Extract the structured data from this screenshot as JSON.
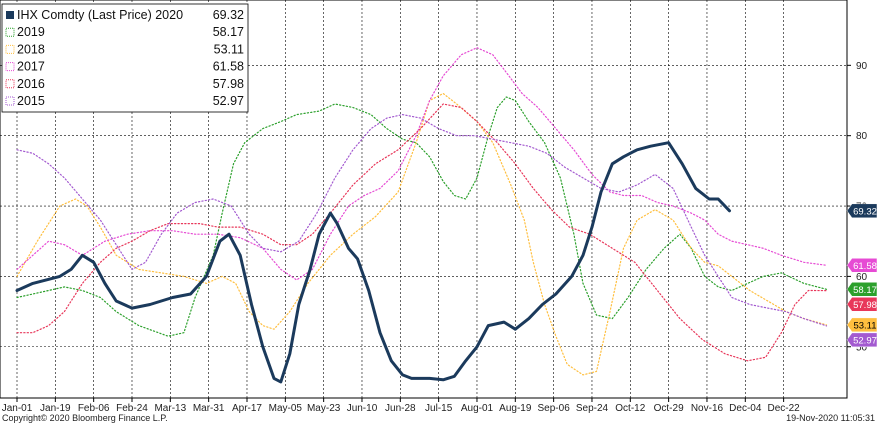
{
  "chart_data": {
    "type": "line",
    "x_ticks": [
      "Jan-01",
      "Jan-19",
      "Feb-06",
      "Feb-24",
      "Mar-13",
      "Mar-31",
      "Apr-17",
      "May-05",
      "May-23",
      "Jun-10",
      "Jun-28",
      "Jul-15",
      "Aug-01",
      "Aug-19",
      "Sep-06",
      "Sep-24",
      "Oct-12",
      "Oct-29",
      "Nov-16",
      "Dec-04",
      "Dec-22"
    ],
    "y_ticks": [
      50,
      60,
      70,
      80,
      90
    ],
    "ylim": [
      43,
      99
    ],
    "xlim": [
      1,
      366
    ],
    "grid": true,
    "legend_position": "top-left",
    "series": [
      {
        "name": "IHX Comdty (Last Price) 2020",
        "last": "69.32",
        "color": "#1b3a5c",
        "style": "solid",
        "points": [
          [
            1,
            58
          ],
          [
            8,
            59
          ],
          [
            14,
            59.5
          ],
          [
            20,
            60
          ],
          [
            25,
            61
          ],
          [
            30,
            63
          ],
          [
            35,
            62
          ],
          [
            40,
            59
          ],
          [
            45,
            56.5
          ],
          [
            52,
            55.5
          ],
          [
            60,
            56
          ],
          [
            70,
            57
          ],
          [
            78,
            57.5
          ],
          [
            85,
            60
          ],
          [
            91,
            65
          ],
          [
            95,
            66
          ],
          [
            100,
            63
          ],
          [
            105,
            56
          ],
          [
            110,
            50
          ],
          [
            115,
            45.5
          ],
          [
            118,
            45
          ],
          [
            122,
            49
          ],
          [
            126,
            56
          ],
          [
            131,
            61
          ],
          [
            135,
            66
          ],
          [
            140,
            69
          ],
          [
            143,
            67.5
          ],
          [
            148,
            64
          ],
          [
            152,
            62.5
          ],
          [
            157,
            58
          ],
          [
            162,
            52
          ],
          [
            167,
            48
          ],
          [
            172,
            46
          ],
          [
            176,
            45.5
          ],
          [
            184,
            45.5
          ],
          [
            190,
            45.3
          ],
          [
            195,
            45.8
          ],
          [
            200,
            48
          ],
          [
            205,
            50
          ],
          [
            210,
            53
          ],
          [
            217,
            53.5
          ],
          [
            222,
            52.5
          ],
          [
            228,
            54
          ],
          [
            234,
            56
          ],
          [
            240,
            57.5
          ],
          [
            247,
            60
          ],
          [
            252,
            63
          ],
          [
            256,
            67
          ],
          [
            260,
            72
          ],
          [
            265,
            76
          ],
          [
            270,
            77
          ],
          [
            276,
            78
          ],
          [
            282,
            78.5
          ],
          [
            290,
            79
          ],
          [
            296,
            76
          ],
          [
            302,
            72.5
          ],
          [
            308,
            71
          ],
          [
            312,
            71
          ],
          [
            317,
            69.32
          ]
        ]
      },
      {
        "name": "2019",
        "last": "58.17",
        "color": "#2ca02c",
        "style": "dotted",
        "points": [
          [
            1,
            57
          ],
          [
            8,
            57.5
          ],
          [
            15,
            58
          ],
          [
            22,
            58.5
          ],
          [
            30,
            58
          ],
          [
            38,
            57
          ],
          [
            45,
            55
          ],
          [
            55,
            53
          ],
          [
            68,
            51.5
          ],
          [
            75,
            52
          ],
          [
            80,
            57
          ],
          [
            88,
            63
          ],
          [
            92,
            69
          ],
          [
            97,
            76
          ],
          [
            102,
            79
          ],
          [
            110,
            81
          ],
          [
            118,
            82
          ],
          [
            125,
            83
          ],
          [
            135,
            83.5
          ],
          [
            142,
            84.5
          ],
          [
            150,
            84
          ],
          [
            158,
            83
          ],
          [
            165,
            81
          ],
          [
            172,
            79.5
          ],
          [
            178,
            79
          ],
          [
            184,
            77
          ],
          [
            190,
            73.5
          ],
          [
            195,
            71.5
          ],
          [
            200,
            71
          ],
          [
            205,
            74
          ],
          [
            210,
            80
          ],
          [
            214,
            84
          ],
          [
            218,
            85.5
          ],
          [
            222,
            85
          ],
          [
            228,
            82
          ],
          [
            235,
            79
          ],
          [
            242,
            74
          ],
          [
            248,
            66
          ],
          [
            252,
            59
          ],
          [
            258,
            54.5
          ],
          [
            265,
            54
          ],
          [
            272,
            57
          ],
          [
            280,
            61
          ],
          [
            288,
            64
          ],
          [
            295,
            66
          ],
          [
            300,
            64
          ],
          [
            306,
            60
          ],
          [
            312,
            58.5
          ],
          [
            318,
            58
          ],
          [
            325,
            59
          ],
          [
            332,
            60
          ],
          [
            340,
            60.5
          ],
          [
            350,
            59
          ],
          [
            360,
            58.17
          ]
        ]
      },
      {
        "name": "2018",
        "last": "53.11",
        "color": "#ffbf3f",
        "style": "dotted",
        "points": [
          [
            1,
            60
          ],
          [
            10,
            65
          ],
          [
            20,
            70
          ],
          [
            27,
            71
          ],
          [
            32,
            70
          ],
          [
            38,
            67
          ],
          [
            45,
            63
          ],
          [
            55,
            61
          ],
          [
            65,
            60.5
          ],
          [
            75,
            60
          ],
          [
            85,
            59
          ],
          [
            92,
            60
          ],
          [
            98,
            59
          ],
          [
            104,
            55
          ],
          [
            110,
            53
          ],
          [
            115,
            52.5
          ],
          [
            122,
            55
          ],
          [
            130,
            59
          ],
          [
            140,
            63
          ],
          [
            150,
            66
          ],
          [
            160,
            68.5
          ],
          [
            170,
            72
          ],
          [
            178,
            79
          ],
          [
            184,
            85
          ],
          [
            190,
            86
          ],
          [
            196,
            84.5
          ],
          [
            205,
            82
          ],
          [
            212,
            79
          ],
          [
            220,
            73
          ],
          [
            226,
            68
          ],
          [
            230,
            62
          ],
          [
            235,
            56
          ],
          [
            240,
            51.5
          ],
          [
            245,
            47.5
          ],
          [
            252,
            46
          ],
          [
            258,
            46.5
          ],
          [
            264,
            55
          ],
          [
            270,
            64
          ],
          [
            276,
            68
          ],
          [
            284,
            69.5
          ],
          [
            292,
            68
          ],
          [
            300,
            64
          ],
          [
            306,
            62
          ],
          [
            312,
            61.5
          ],
          [
            318,
            60
          ],
          [
            326,
            58
          ],
          [
            334,
            56.5
          ],
          [
            342,
            55
          ],
          [
            350,
            54
          ],
          [
            360,
            53.11
          ]
        ]
      },
      {
        "name": "2017",
        "last": "61.58",
        "color": "#e64bd4",
        "style": "dotted",
        "points": [
          [
            1,
            61
          ],
          [
            8,
            63
          ],
          [
            15,
            65
          ],
          [
            22,
            64.5
          ],
          [
            30,
            63
          ],
          [
            40,
            65
          ],
          [
            50,
            66
          ],
          [
            60,
            66.5
          ],
          [
            70,
            66.5
          ],
          [
            80,
            66
          ],
          [
            90,
            66
          ],
          [
            100,
            65.5
          ],
          [
            110,
            64
          ],
          [
            118,
            61
          ],
          [
            125,
            59.5
          ],
          [
            132,
            61
          ],
          [
            140,
            66
          ],
          [
            148,
            70
          ],
          [
            155,
            71.5
          ],
          [
            162,
            72.5
          ],
          [
            170,
            75
          ],
          [
            178,
            80
          ],
          [
            184,
            85
          ],
          [
            190,
            88.5
          ],
          [
            198,
            91.5
          ],
          [
            205,
            92.5
          ],
          [
            212,
            91.5
          ],
          [
            218,
            89
          ],
          [
            225,
            86
          ],
          [
            232,
            84
          ],
          [
            240,
            81
          ],
          [
            248,
            78
          ],
          [
            256,
            74.5
          ],
          [
            264,
            72
          ],
          [
            270,
            71.5
          ],
          [
            278,
            71.5
          ],
          [
            285,
            70.5
          ],
          [
            292,
            70
          ],
          [
            300,
            69
          ],
          [
            306,
            68
          ],
          [
            312,
            66
          ],
          [
            318,
            65
          ],
          [
            325,
            64.5
          ],
          [
            332,
            64
          ],
          [
            340,
            63
          ],
          [
            350,
            62
          ],
          [
            360,
            61.58
          ]
        ]
      },
      {
        "name": "2016",
        "last": "57.98",
        "color": "#e8375a",
        "style": "dotted",
        "points": [
          [
            1,
            52
          ],
          [
            8,
            52
          ],
          [
            15,
            53
          ],
          [
            22,
            55
          ],
          [
            30,
            59
          ],
          [
            38,
            62
          ],
          [
            45,
            64
          ],
          [
            52,
            65
          ],
          [
            60,
            66.5
          ],
          [
            68,
            67.5
          ],
          [
            75,
            67.5
          ],
          [
            82,
            67.5
          ],
          [
            90,
            67
          ],
          [
            100,
            67
          ],
          [
            110,
            66
          ],
          [
            118,
            64.5
          ],
          [
            125,
            64.5
          ],
          [
            132,
            66
          ],
          [
            140,
            69
          ],
          [
            150,
            73
          ],
          [
            160,
            76
          ],
          [
            170,
            78
          ],
          [
            180,
            81
          ],
          [
            190,
            84.5
          ],
          [
            198,
            84
          ],
          [
            205,
            82
          ],
          [
            214,
            79
          ],
          [
            222,
            76
          ],
          [
            230,
            72.5
          ],
          [
            238,
            69.5
          ],
          [
            246,
            67
          ],
          [
            255,
            66
          ],
          [
            265,
            64
          ],
          [
            275,
            62
          ],
          [
            285,
            58
          ],
          [
            295,
            54
          ],
          [
            305,
            51
          ],
          [
            315,
            49
          ],
          [
            325,
            48
          ],
          [
            333,
            48.5
          ],
          [
            340,
            52
          ],
          [
            346,
            56
          ],
          [
            352,
            58
          ],
          [
            360,
            57.98
          ]
        ]
      },
      {
        "name": "2015",
        "last": "52.97",
        "color": "#a35ad0",
        "style": "dotted",
        "points": [
          [
            1,
            78
          ],
          [
            8,
            77.5
          ],
          [
            15,
            76
          ],
          [
            22,
            74
          ],
          [
            30,
            71
          ],
          [
            38,
            68
          ],
          [
            45,
            64.5
          ],
          [
            52,
            61
          ],
          [
            58,
            62
          ],
          [
            65,
            66
          ],
          [
            72,
            69
          ],
          [
            80,
            70.5
          ],
          [
            88,
            71
          ],
          [
            96,
            70
          ],
          [
            104,
            66
          ],
          [
            110,
            64
          ],
          [
            118,
            63.5
          ],
          [
            126,
            65
          ],
          [
            134,
            69
          ],
          [
            142,
            74
          ],
          [
            150,
            78
          ],
          [
            158,
            81
          ],
          [
            165,
            82.5
          ],
          [
            172,
            83
          ],
          [
            180,
            82.5
          ],
          [
            188,
            81
          ],
          [
            196,
            80
          ],
          [
            204,
            80
          ],
          [
            212,
            79.5
          ],
          [
            220,
            79
          ],
          [
            228,
            78.5
          ],
          [
            236,
            77.5
          ],
          [
            244,
            75.5
          ],
          [
            252,
            74
          ],
          [
            260,
            72.5
          ],
          [
            268,
            72
          ],
          [
            276,
            73
          ],
          [
            284,
            74.5
          ],
          [
            292,
            72.5
          ],
          [
            300,
            67
          ],
          [
            306,
            63
          ],
          [
            312,
            60
          ],
          [
            318,
            57
          ],
          [
            326,
            56
          ],
          [
            334,
            55.5
          ],
          [
            342,
            55
          ],
          [
            350,
            54
          ],
          [
            360,
            52.97
          ]
        ]
      }
    ]
  },
  "footer": {
    "copyright": "Copyright© 2020 Bloomberg Finance L.P.",
    "timestamp": "19-Nov-2020 11:05:31"
  }
}
